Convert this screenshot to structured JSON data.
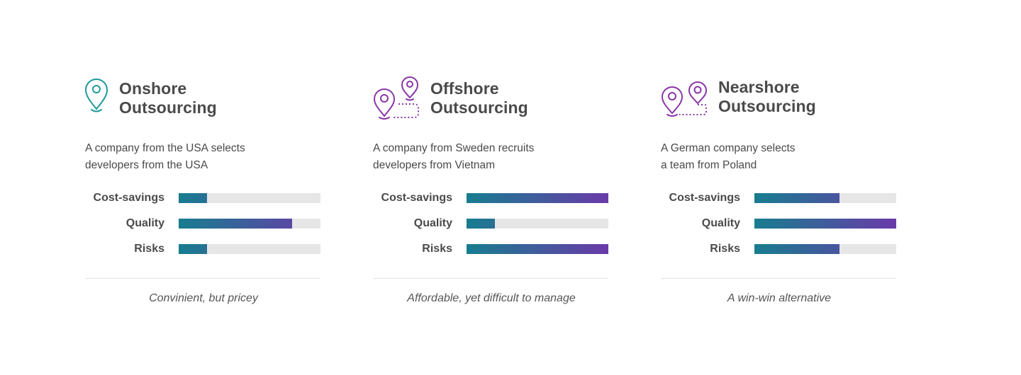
{
  "chart_data": [
    {
      "type": "bar",
      "icon": "single-location-pin-icon",
      "title_lines": [
        "Onshore",
        "Outsourcing"
      ],
      "description_lines": [
        "A company from the USA selects",
        "developers from the USA"
      ],
      "categories": [
        "Cost-savings",
        "Quality",
        "Risks"
      ],
      "values": [
        0.2,
        0.8,
        0.2
      ],
      "ylim": [
        0,
        1
      ],
      "summary": "Convinient, but pricey",
      "colors": {
        "start": "#177d8f",
        "end": "#6a3aa8"
      }
    },
    {
      "type": "bar",
      "icon": "distant-location-pins-icon",
      "title_lines": [
        "Offshore",
        "Outsourcing"
      ],
      "description_lines": [
        "A company from Sweden recruits",
        "developers from Vietnam"
      ],
      "categories": [
        "Cost-savings",
        "Quality",
        "Risks"
      ],
      "values": [
        1.0,
        0.2,
        1.0
      ],
      "ylim": [
        0,
        1
      ],
      "summary": "Affordable, yet difficult to manage",
      "colors": {
        "start": "#177d8f",
        "end": "#6a3aa8"
      }
    },
    {
      "type": "bar",
      "icon": "near-location-pins-icon",
      "title_lines": [
        "Nearshore",
        "Outsourcing"
      ],
      "description_lines": [
        "A German company selects",
        "a team from Poland"
      ],
      "categories": [
        "Cost-savings",
        "Quality",
        "Risks"
      ],
      "values": [
        0.6,
        1.0,
        0.6
      ],
      "ylim": [
        0,
        1
      ],
      "summary": "A win-win alternative",
      "colors": {
        "start": "#177d8f",
        "end": "#6a3aa8"
      }
    }
  ],
  "colors": {
    "teal": "#1f9b9b",
    "purple": "#8a36a8",
    "track": "#e6e6e6",
    "text": "#4a4a4a"
  }
}
